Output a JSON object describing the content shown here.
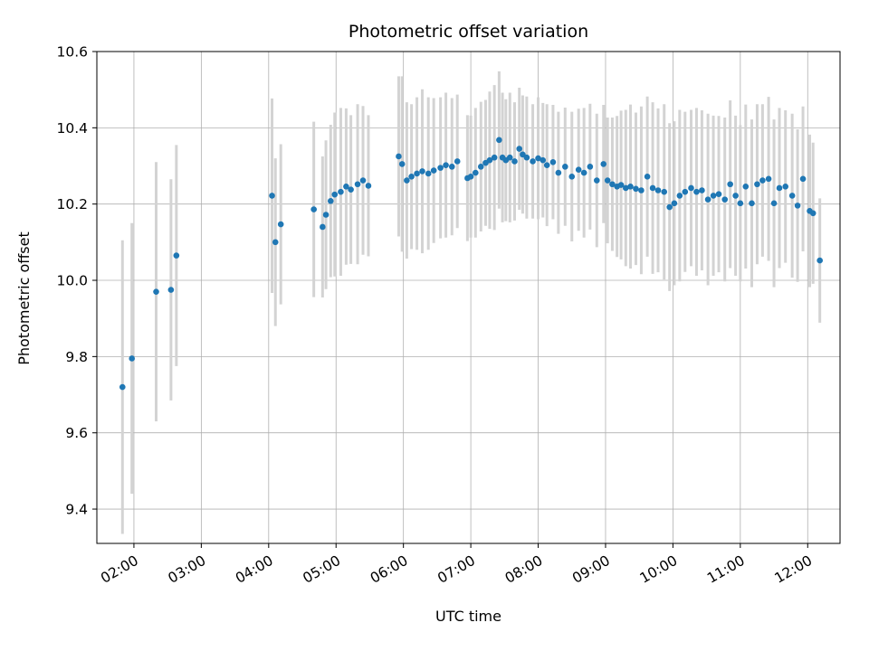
{
  "chart_data": {
    "type": "scatter",
    "title": "Photometric offset variation",
    "xlabel": "UTC time",
    "ylabel": "Photometric offset",
    "xlim_hours": [
      1.45,
      12.48
    ],
    "ylim": [
      9.31,
      10.6
    ],
    "grid": true,
    "legend": "none",
    "marker_color": "#1f77b4",
    "errorbar_color": "#d3d3d3",
    "grid_color": "#b0b0b0",
    "xticks": [
      {
        "hour": 2,
        "label": "02:00"
      },
      {
        "hour": 3,
        "label": "03:00"
      },
      {
        "hour": 4,
        "label": "04:00"
      },
      {
        "hour": 5,
        "label": "05:00"
      },
      {
        "hour": 6,
        "label": "06:00"
      },
      {
        "hour": 7,
        "label": "07:00"
      },
      {
        "hour": 8,
        "label": "08:00"
      },
      {
        "hour": 9,
        "label": "09:00"
      },
      {
        "hour": 10,
        "label": "10:00"
      },
      {
        "hour": 11,
        "label": "11:00"
      },
      {
        "hour": 12,
        "label": "12:00"
      }
    ],
    "yticks": [
      {
        "value": 9.4,
        "label": "9.4"
      },
      {
        "value": 9.6,
        "label": "9.6"
      },
      {
        "value": 9.8,
        "label": "9.8"
      },
      {
        "value": 10.0,
        "label": "10.0"
      },
      {
        "value": 10.2,
        "label": "10.2"
      },
      {
        "value": 10.4,
        "label": "10.4"
      },
      {
        "value": 10.6,
        "label": "10.6"
      }
    ],
    "points_format": [
      "utc_hour_decimal",
      "photometric_offset",
      "error"
    ],
    "points": [
      [
        1.83,
        9.72,
        0.385
      ],
      [
        1.97,
        9.795,
        0.355
      ],
      [
        2.33,
        9.97,
        0.34
      ],
      [
        2.55,
        9.975,
        0.29
      ],
      [
        2.63,
        10.065,
        0.29
      ],
      [
        4.05,
        10.222,
        0.255
      ],
      [
        4.1,
        10.1,
        0.22
      ],
      [
        4.18,
        10.147,
        0.21
      ],
      [
        4.67,
        10.186,
        0.23
      ],
      [
        4.8,
        10.14,
        0.185
      ],
      [
        4.85,
        10.172,
        0.195
      ],
      [
        4.92,
        10.208,
        0.2
      ],
      [
        4.98,
        10.225,
        0.215
      ],
      [
        5.07,
        10.232,
        0.22
      ],
      [
        5.15,
        10.246,
        0.205
      ],
      [
        5.22,
        10.238,
        0.195
      ],
      [
        5.32,
        10.252,
        0.21
      ],
      [
        5.4,
        10.262,
        0.195
      ],
      [
        5.48,
        10.248,
        0.185
      ],
      [
        5.93,
        10.325,
        0.21
      ],
      [
        5.98,
        10.305,
        0.23
      ],
      [
        6.05,
        10.262,
        0.205
      ],
      [
        6.12,
        10.272,
        0.19
      ],
      [
        6.2,
        10.28,
        0.2
      ],
      [
        6.28,
        10.286,
        0.215
      ],
      [
        6.37,
        10.28,
        0.2
      ],
      [
        6.45,
        10.288,
        0.19
      ],
      [
        6.55,
        10.295,
        0.185
      ],
      [
        6.63,
        10.302,
        0.19
      ],
      [
        6.72,
        10.298,
        0.18
      ],
      [
        6.8,
        10.312,
        0.175
      ],
      [
        6.95,
        10.268,
        0.165
      ],
      [
        7.0,
        10.272,
        0.16
      ],
      [
        7.07,
        10.282,
        0.17
      ],
      [
        7.15,
        10.298,
        0.17
      ],
      [
        7.22,
        10.308,
        0.165
      ],
      [
        7.28,
        10.315,
        0.18
      ],
      [
        7.35,
        10.322,
        0.19
      ],
      [
        7.42,
        10.368,
        0.18
      ],
      [
        7.47,
        10.322,
        0.17
      ],
      [
        7.52,
        10.315,
        0.16
      ],
      [
        7.58,
        10.322,
        0.17
      ],
      [
        7.65,
        10.312,
        0.155
      ],
      [
        7.72,
        10.345,
        0.16
      ],
      [
        7.77,
        10.33,
        0.155
      ],
      [
        7.83,
        10.322,
        0.16
      ],
      [
        7.92,
        10.312,
        0.15
      ],
      [
        8.0,
        10.32,
        0.16
      ],
      [
        8.07,
        10.315,
        0.15
      ],
      [
        8.13,
        10.302,
        0.16
      ],
      [
        8.22,
        10.31,
        0.15
      ],
      [
        8.3,
        10.282,
        0.16
      ],
      [
        8.4,
        10.298,
        0.155
      ],
      [
        8.5,
        10.272,
        0.17
      ],
      [
        8.6,
        10.29,
        0.16
      ],
      [
        8.68,
        10.282,
        0.17
      ],
      [
        8.77,
        10.298,
        0.165
      ],
      [
        8.87,
        10.262,
        0.175
      ],
      [
        8.97,
        10.305,
        0.155
      ],
      [
        9.03,
        10.262,
        0.165
      ],
      [
        9.1,
        10.252,
        0.175
      ],
      [
        9.17,
        10.246,
        0.185
      ],
      [
        9.23,
        10.25,
        0.195
      ],
      [
        9.3,
        10.242,
        0.205
      ],
      [
        9.37,
        10.246,
        0.215
      ],
      [
        9.45,
        10.24,
        0.2
      ],
      [
        9.53,
        10.236,
        0.22
      ],
      [
        9.62,
        10.272,
        0.21
      ],
      [
        9.7,
        10.242,
        0.225
      ],
      [
        9.78,
        10.236,
        0.215
      ],
      [
        9.87,
        10.232,
        0.23
      ],
      [
        9.95,
        10.192,
        0.22
      ],
      [
        10.02,
        10.202,
        0.215
      ],
      [
        10.1,
        10.222,
        0.225
      ],
      [
        10.18,
        10.232,
        0.21
      ],
      [
        10.27,
        10.242,
        0.205
      ],
      [
        10.35,
        10.232,
        0.22
      ],
      [
        10.43,
        10.236,
        0.21
      ],
      [
        10.52,
        10.212,
        0.225
      ],
      [
        10.6,
        10.222,
        0.21
      ],
      [
        10.68,
        10.226,
        0.205
      ],
      [
        10.77,
        10.212,
        0.215
      ],
      [
        10.85,
        10.252,
        0.22
      ],
      [
        10.93,
        10.222,
        0.21
      ],
      [
        11.0,
        10.202,
        0.205
      ],
      [
        11.08,
        10.246,
        0.215
      ],
      [
        11.17,
        10.202,
        0.22
      ],
      [
        11.25,
        10.252,
        0.21
      ],
      [
        11.33,
        10.262,
        0.2
      ],
      [
        11.42,
        10.266,
        0.215
      ],
      [
        11.5,
        10.202,
        0.22
      ],
      [
        11.58,
        10.242,
        0.21
      ],
      [
        11.67,
        10.246,
        0.2
      ],
      [
        11.77,
        10.222,
        0.215
      ],
      [
        11.85,
        10.196,
        0.2
      ],
      [
        11.93,
        10.266,
        0.19
      ],
      [
        12.03,
        10.182,
        0.2
      ],
      [
        12.08,
        10.176,
        0.185
      ],
      [
        12.18,
        10.052,
        0.163
      ]
    ]
  }
}
